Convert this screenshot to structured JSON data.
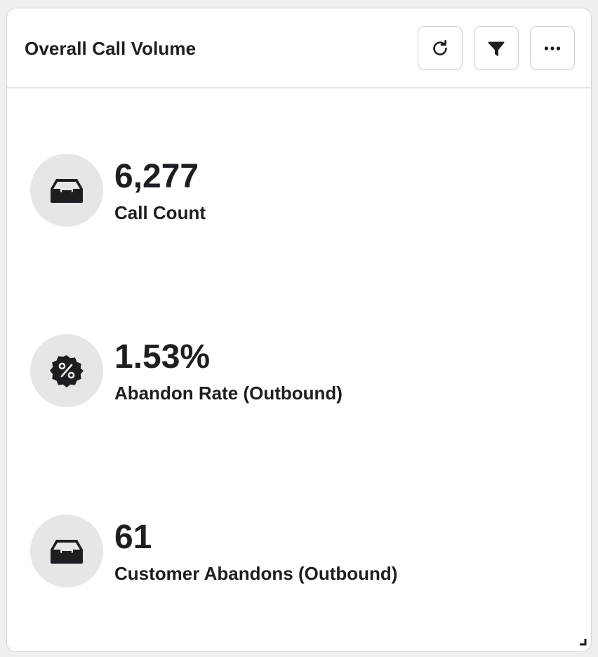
{
  "widget": {
    "title": "Overall Call Volume",
    "toolbar": {
      "refresh_icon": "refresh-icon",
      "filter_icon": "filter-icon",
      "more_icon": "more-horizontal-icon"
    }
  },
  "metrics": [
    {
      "value": "6,277",
      "label": "Call Count",
      "icon": "inbox-icon"
    },
    {
      "value": "1.53%",
      "label": "Abandon Rate (Outbound)",
      "icon": "percent-badge-icon"
    },
    {
      "value": "61",
      "label": "Customer Abandons (Outbound)",
      "icon": "inbox-icon"
    }
  ],
  "colors": {
    "text": "#1c1e21",
    "icon_circle": "#e6e6e7",
    "card_border": "#d4d6d9",
    "background": "#eeeff1"
  }
}
